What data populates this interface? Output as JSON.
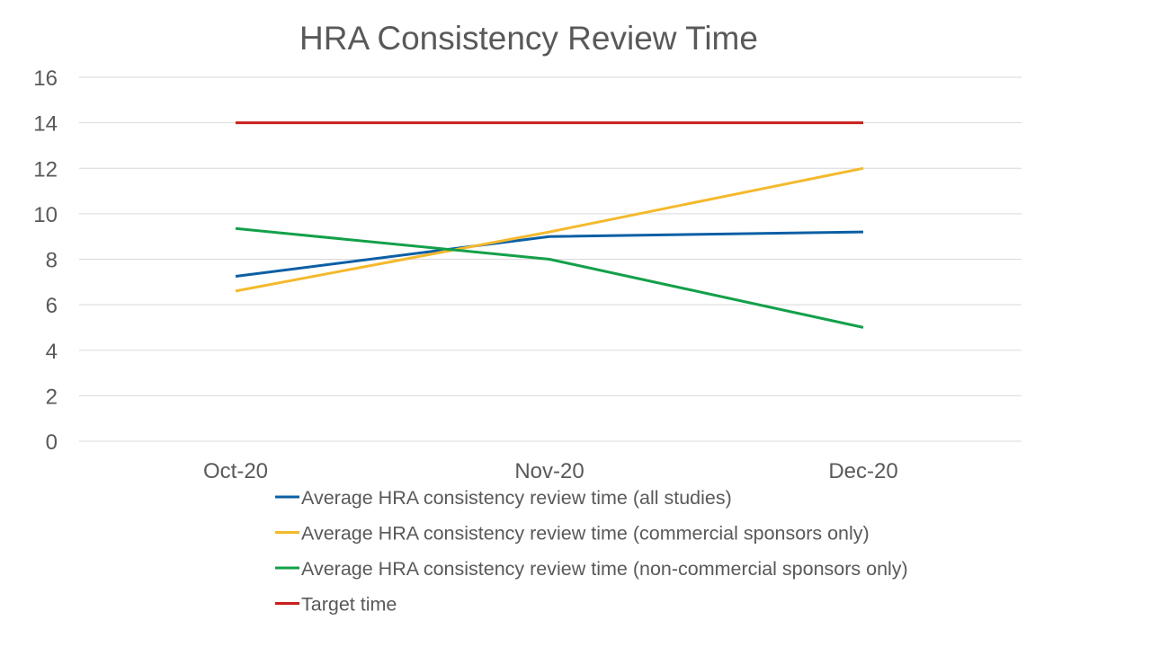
{
  "chart_data": {
    "type": "line",
    "title": "HRA Consistency Review Time",
    "xlabel": "",
    "ylabel": "",
    "categories": [
      "Oct-20",
      "Nov-20",
      "Dec-20"
    ],
    "ylim": [
      0,
      16
    ],
    "y_ticks": [
      "0",
      "2",
      "4",
      "6",
      "8",
      "10",
      "12",
      "14",
      "16"
    ],
    "grid": true,
    "legend_position": "bottom",
    "series": [
      {
        "name": "Average HRA consistency review time (all studies)",
        "values": [
          7.25,
          9.0,
          9.2
        ],
        "color": "#0b5fa5"
      },
      {
        "name": "Average HRA consistency review time (commercial sponsors only)",
        "values": [
          6.6,
          9.2,
          12.0
        ],
        "color": "#f4b92c"
      },
      {
        "name": "Average HRA consistency review time (non-commercial sponsors only)",
        "values": [
          9.35,
          8.0,
          5.0
        ],
        "color": "#13a04a"
      },
      {
        "name": "Target time",
        "values": [
          14,
          14,
          14
        ],
        "color": "#c8201e"
      }
    ]
  }
}
